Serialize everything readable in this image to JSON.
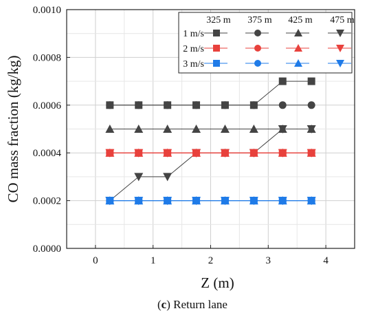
{
  "chart_data": {
    "type": "line",
    "xlabel": "Z (m)",
    "ylabel": "CO mass fraction (kg/kg)",
    "caption_prefix": "c",
    "caption_text": "Return lane",
    "xlim": [
      -0.5,
      4.5
    ],
    "ylim": [
      0,
      0.001
    ],
    "x_ticks": [
      0,
      1,
      2,
      3,
      4
    ],
    "y_ticks": [
      "0.0000",
      "0.0002",
      "0.0004",
      "0.0006",
      "0.0008",
      "0.0010"
    ],
    "y_tick_values": [
      0,
      0.0002,
      0.0004,
      0.0006,
      0.0008,
      0.001
    ],
    "grid": true,
    "legend_position": "top-right",
    "legend_columns": [
      "325 m",
      "375 m",
      "425 m",
      "475 m"
    ],
    "legend_rows": [
      "1 m/s",
      "2 m/s",
      "3 m/s"
    ],
    "x": [
      0.25,
      0.75,
      1.25,
      1.75,
      2.25,
      2.75,
      3.25,
      3.75
    ],
    "series": [
      {
        "speed": "1 m/s",
        "position": "325 m",
        "marker": "square",
        "color": "#444444",
        "values": [
          0.0006,
          0.0006,
          0.0006,
          0.0006,
          0.0006,
          0.0006,
          0.0007,
          0.0007
        ]
      },
      {
        "speed": "1 m/s",
        "position": "375 m",
        "marker": "circle",
        "color": "#444444",
        "values": [
          0.0006,
          0.0006,
          0.0006,
          0.0006,
          0.0006,
          0.0006,
          0.0006,
          0.0006
        ]
      },
      {
        "speed": "1 m/s",
        "position": "425 m",
        "marker": "triangle-up",
        "color": "#444444",
        "values": [
          0.0005,
          0.0005,
          0.0005,
          0.0005,
          0.0005,
          0.0005,
          0.0005,
          0.0005
        ]
      },
      {
        "speed": "1 m/s",
        "position": "475 m",
        "marker": "triangle-down",
        "color": "#444444",
        "values": [
          0.0002,
          0.0003,
          0.0003,
          0.0004,
          0.0004,
          0.0004,
          0.0005,
          0.0005
        ]
      },
      {
        "speed": "2 m/s",
        "position": "325 m",
        "marker": "square",
        "color": "#e8413c",
        "values": [
          0.0004,
          0.0004,
          0.0004,
          0.0004,
          0.0004,
          0.0004,
          0.0004,
          0.0004
        ]
      },
      {
        "speed": "2 m/s",
        "position": "375 m",
        "marker": "circle",
        "color": "#e8413c",
        "values": [
          0.0004,
          0.0004,
          0.0004,
          0.0004,
          0.0004,
          0.0004,
          0.0004,
          0.0004
        ]
      },
      {
        "speed": "2 m/s",
        "position": "425 m",
        "marker": "triangle-up",
        "color": "#e8413c",
        "values": [
          0.0004,
          0.0004,
          0.0004,
          0.0004,
          0.0004,
          0.0004,
          0.0004,
          0.0004
        ]
      },
      {
        "speed": "2 m/s",
        "position": "475 m",
        "marker": "triangle-down",
        "color": "#e8413c",
        "values": [
          0.0004,
          0.0004,
          0.0004,
          0.0004,
          0.0004,
          0.0004,
          0.0004,
          0.0004
        ]
      },
      {
        "speed": "3 m/s",
        "position": "325 m",
        "marker": "square",
        "color": "#1f7be8",
        "values": [
          0.0002,
          0.0002,
          0.0002,
          0.0002,
          0.0002,
          0.0002,
          0.0002,
          0.0002
        ]
      },
      {
        "speed": "3 m/s",
        "position": "375 m",
        "marker": "circle",
        "color": "#1f7be8",
        "values": [
          0.0002,
          0.0002,
          0.0002,
          0.0002,
          0.0002,
          0.0002,
          0.0002,
          0.0002
        ]
      },
      {
        "speed": "3 m/s",
        "position": "425 m",
        "marker": "triangle-up",
        "color": "#1f7be8",
        "values": [
          0.0002,
          0.0002,
          0.0002,
          0.0002,
          0.0002,
          0.0002,
          0.0002,
          0.0002
        ]
      },
      {
        "speed": "3 m/s",
        "position": "475 m",
        "marker": "triangle-down",
        "color": "#1f7be8",
        "values": [
          0.0002,
          0.0002,
          0.0002,
          0.0002,
          0.0002,
          0.0002,
          0.0002,
          0.0002
        ]
      }
    ]
  }
}
